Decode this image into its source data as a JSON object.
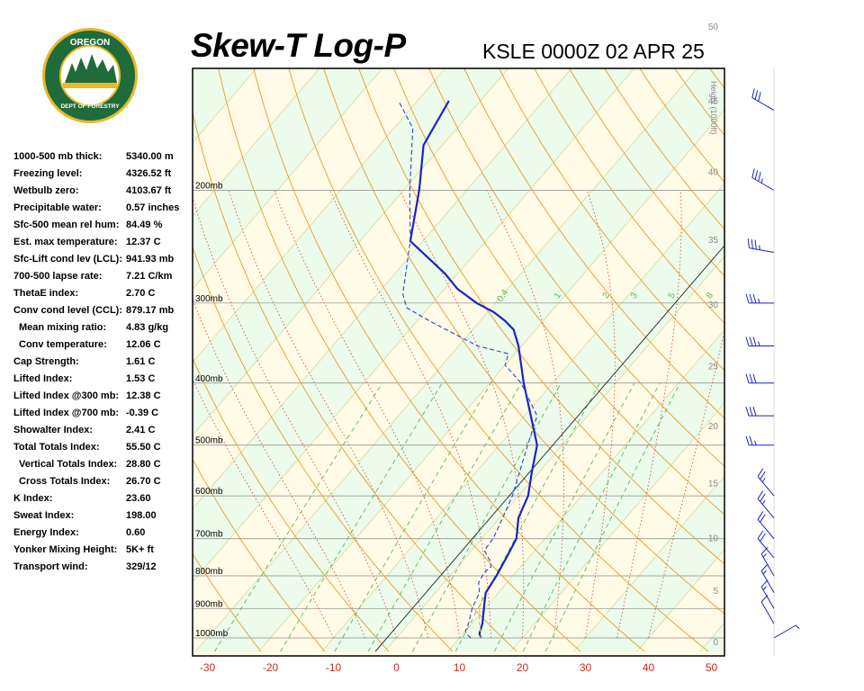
{
  "header": {
    "title": "Skew-T Log-P",
    "station": "KSLE 0000Z 02 APR 25"
  },
  "logo": {
    "text_top": "OREGON",
    "text_ring": "DEPARTMENT OF FORESTRY",
    "ring_color": "#1f6b3a",
    "gold_color": "#e8b92a"
  },
  "indices": [
    {
      "label": "1000-500 mb thick:",
      "value": "5340.00 m",
      "sub": false
    },
    {
      "label": "Freezing level:",
      "value": "4326.52 ft",
      "sub": false
    },
    {
      "label": "Wetbulb zero:",
      "value": "4103.67 ft",
      "sub": false
    },
    {
      "label": "Precipitable water:",
      "value": "0.57 inches",
      "sub": false
    },
    {
      "label": "Sfc-500 mean rel hum:",
      "value": "84.49 %",
      "sub": false
    },
    {
      "label": "Est. max temperature:",
      "value": "12.37 C",
      "sub": false
    },
    {
      "label": "Sfc-Lift cond lev (LCL):",
      "value": "941.93 mb",
      "sub": false
    },
    {
      "label": "700-500 lapse rate:",
      "value": "7.21 C/km",
      "sub": false
    },
    {
      "label": "ThetaE index:",
      "value": "2.70 C",
      "sub": false
    },
    {
      "label": "Conv cond level (CCL):",
      "value": "879.17 mb",
      "sub": false
    },
    {
      "label": "Mean mixing ratio:",
      "value": "4.83 g/kg",
      "sub": true
    },
    {
      "label": "Conv temperature:",
      "value": "12.06 C",
      "sub": true
    },
    {
      "label": "Cap Strength:",
      "value": "1.61 C",
      "sub": false
    },
    {
      "label": "Lifted Index:",
      "value": "1.53 C",
      "sub": false
    },
    {
      "label": "Lifted Index @300 mb:",
      "value": "12.38 C",
      "sub": false
    },
    {
      "label": "Lifted Index @700 mb:",
      "value": "-0.39 C",
      "sub": false
    },
    {
      "label": "Showalter Index:",
      "value": "2.41 C",
      "sub": false
    },
    {
      "label": "Total Totals Index:",
      "value": "55.50 C",
      "sub": false
    },
    {
      "label": "Vertical Totals Index:",
      "value": "28.80 C",
      "sub": true
    },
    {
      "label": "Cross Totals Index:",
      "value": "26.70 C",
      "sub": true
    },
    {
      "label": "K Index:",
      "value": "23.60",
      "sub": false
    },
    {
      "label": "Sweat Index:",
      "value": "198.00",
      "sub": false
    },
    {
      "label": "Energy Index:",
      "value": "0.60",
      "sub": false
    },
    {
      "label": "Yonker Mixing Height:",
      "value": "5K+ ft",
      "sub": false
    },
    {
      "label": "Transport wind:",
      "value": "329/12",
      "sub": false
    }
  ],
  "chart_data": {
    "type": "line",
    "title": "Skew-T Log-P",
    "subtitle": "KSLE 0000Z 02 APR 25",
    "x_ticks": [
      -30,
      -20,
      -10,
      0,
      10,
      20,
      30,
      40,
      50
    ],
    "x_tick_labels": [
      "-30",
      "-20",
      "-10",
      "0",
      "10",
      "20",
      "30",
      "40",
      "50"
    ],
    "pressure_labels": [
      "200mb",
      "300mb",
      "400mb",
      "500mb",
      "600mb",
      "700mb",
      "800mb",
      "900mb",
      "1000mb"
    ],
    "pressure_levels": [
      200,
      300,
      400,
      500,
      600,
      700,
      800,
      900,
      1000
    ],
    "height_axis_label": "Height (1000ft)",
    "height_ticks": [
      0,
      5,
      10,
      15,
      20,
      25,
      30,
      35,
      40,
      45,
      50
    ],
    "height_tick_labels": [
      "0",
      "5",
      "10",
      "15",
      "20",
      "25",
      "30",
      "35",
      "40",
      "45",
      "50"
    ],
    "mixing_ratio_labels": [
      "0.4",
      "1",
      "2",
      "3",
      "5",
      "8"
    ],
    "colors": {
      "temperature": "#1a22c9",
      "dewpoint": "#2b3fd6",
      "isotherm": "#d8d8a0",
      "dry_adiabat": "#e89a2c",
      "moist_adiabat": "#d8402a",
      "mixing_ratio": "#5ab85a",
      "isobar": "#888888",
      "band_yellow": "#fffbe6",
      "band_green": "#ecfbea",
      "axis_red": "#cc2a1a"
    },
    "series": [
      {
        "name": "temperature",
        "points": [
          [
            13.5,
            1000
          ],
          [
            12.6,
            985
          ],
          [
            11.7,
            950
          ],
          [
            10.8,
            925
          ],
          [
            9.5,
            890
          ],
          [
            8.0,
            850
          ],
          [
            7.4,
            800
          ],
          [
            6.5,
            750
          ],
          [
            5.5,
            700
          ],
          [
            3.0,
            650
          ],
          [
            1.5,
            600
          ],
          [
            -1.2,
            550
          ],
          [
            -4.0,
            500
          ],
          [
            -9.0,
            450
          ],
          [
            -14.6,
            400
          ],
          [
            -20.5,
            350
          ],
          [
            -23.5,
            330
          ],
          [
            -26.0,
            320
          ],
          [
            -29.0,
            310
          ],
          [
            -33.0,
            300
          ],
          [
            -38.0,
            285
          ],
          [
            -42.0,
            270
          ],
          [
            -52.0,
            240
          ],
          [
            -57.5,
            200
          ],
          [
            -63.0,
            170
          ],
          [
            -65.0,
            145
          ]
        ]
      },
      {
        "name": "dewpoint",
        "points": [
          [
            11.8,
            1000
          ],
          [
            10.5,
            985
          ],
          [
            10.0,
            975
          ],
          [
            9.5,
            950
          ],
          [
            8.0,
            900
          ],
          [
            7.0,
            850
          ],
          [
            5.5,
            820
          ],
          [
            5.0,
            790
          ],
          [
            5.3,
            775
          ],
          [
            4.5,
            760
          ],
          [
            2.0,
            730
          ],
          [
            1.8,
            700
          ],
          [
            0.5,
            650
          ],
          [
            -1.0,
            600
          ],
          [
            -5.5,
            500
          ],
          [
            -8.0,
            450
          ],
          [
            -15.0,
            400
          ],
          [
            -20.0,
            375
          ],
          [
            -21.0,
            360
          ],
          [
            -27.0,
            350
          ],
          [
            -38.0,
            320
          ],
          [
            -43.5,
            305
          ],
          [
            -46.0,
            290
          ],
          [
            -52.0,
            240
          ],
          [
            -59.0,
            200
          ],
          [
            -67.0,
            160
          ],
          [
            -73.0,
            145
          ]
        ]
      },
      {
        "name": "parcel",
        "points": [
          [
            13.5,
            1000
          ],
          [
            11.2,
            950
          ],
          [
            9.2,
            900
          ],
          [
            8.0,
            860
          ]
        ]
      }
    ],
    "winds": [
      {
        "p": 1000,
        "dir": 60,
        "spd": 8
      },
      {
        "p": 950,
        "dir": 330,
        "spd": 10
      },
      {
        "p": 900,
        "dir": 330,
        "spd": 15
      },
      {
        "p": 850,
        "dir": 330,
        "spd": 15
      },
      {
        "p": 800,
        "dir": 330,
        "spd": 15
      },
      {
        "p": 750,
        "dir": 320,
        "spd": 20
      },
      {
        "p": 700,
        "dir": 320,
        "spd": 20
      },
      {
        "p": 650,
        "dir": 320,
        "spd": 25
      },
      {
        "p": 600,
        "dir": 320,
        "spd": 25
      },
      {
        "p": 500,
        "dir": 270,
        "spd": 25
      },
      {
        "p": 450,
        "dir": 270,
        "spd": 30
      },
      {
        "p": 400,
        "dir": 270,
        "spd": 30
      },
      {
        "p": 350,
        "dir": 270,
        "spd": 35
      },
      {
        "p": 300,
        "dir": 270,
        "spd": 35
      },
      {
        "p": 250,
        "dir": 280,
        "spd": 35
      },
      {
        "p": 200,
        "dir": 300,
        "spd": 35
      },
      {
        "p": 150,
        "dir": 300,
        "spd": 30
      }
    ]
  }
}
